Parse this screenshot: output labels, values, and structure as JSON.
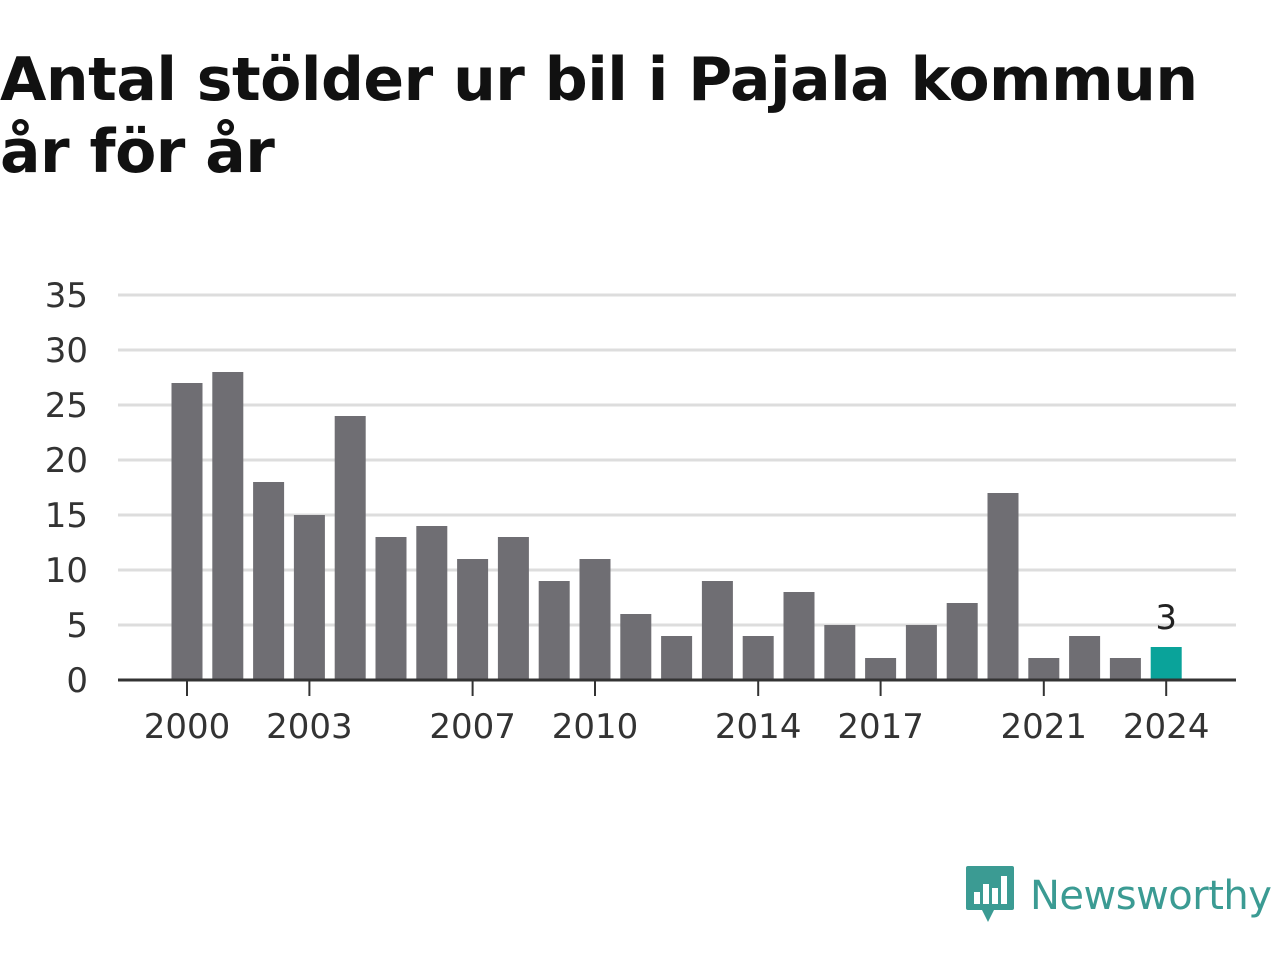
{
  "title": "Antal stölder ur bil i Pajala kommun år för år",
  "brand": {
    "name": "Newsworthy",
    "icon": "bar-chart-speech-bubble-icon",
    "color": "#3b9b93"
  },
  "colors": {
    "bar": "#6f6e73",
    "highlight": "#0aa39a",
    "grid": "#dddddd",
    "axis": "#333333"
  },
  "chart_data": {
    "type": "bar",
    "title": "Antal stölder ur bil i Pajala kommun år för år",
    "x": [
      2000,
      2001,
      2002,
      2003,
      2004,
      2005,
      2006,
      2007,
      2008,
      2009,
      2010,
      2011,
      2012,
      2013,
      2014,
      2015,
      2016,
      2017,
      2018,
      2019,
      2020,
      2021,
      2022,
      2023,
      2024
    ],
    "values": [
      27,
      28,
      18,
      15,
      24,
      13,
      14,
      11,
      13,
      9,
      11,
      6,
      4,
      9,
      4,
      8,
      5,
      2,
      5,
      7,
      17,
      2,
      4,
      2,
      3
    ],
    "x_tick_labels": [
      "2000",
      "2003",
      "2007",
      "2010",
      "2014",
      "2017",
      "2021",
      "2024"
    ],
    "y_ticks": [
      "0",
      "5",
      "10",
      "15",
      "20",
      "25",
      "30",
      "35"
    ],
    "ylim": [
      0,
      35
    ],
    "grid": true,
    "highlight": {
      "x": 2024,
      "label": "3"
    },
    "xlabel": "",
    "ylabel": ""
  }
}
